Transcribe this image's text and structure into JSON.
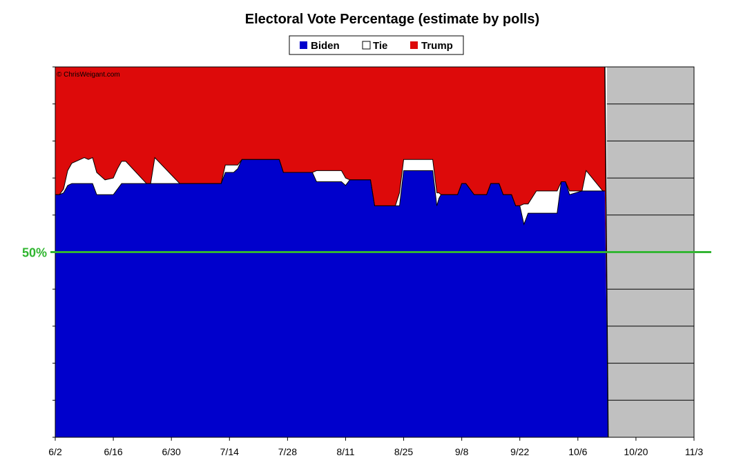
{
  "chart_data": {
    "type": "area",
    "title": "Electoral Vote Percentage (estimate by polls)",
    "credit": "© ChrisWeigant.com",
    "xlabel": "",
    "ylabel": "",
    "ylim": [
      0,
      100
    ],
    "x_ticks": [
      "6/2",
      "6/16",
      "6/30",
      "7/14",
      "7/28",
      "8/11",
      "8/25",
      "9/8",
      "9/22",
      "10/6",
      "10/20",
      "11/3"
    ],
    "x_tick_days": [
      0,
      14,
      28,
      42,
      56,
      70,
      84,
      98,
      112,
      126,
      140,
      154
    ],
    "y_grid_step": 10,
    "grid": true,
    "legend": "top-center",
    "reference_line": {
      "label": "50%",
      "value": 50,
      "color": "#33b533"
    },
    "future_region": {
      "from_day": 133,
      "to_day": 154,
      "color": "#c0c0c0"
    },
    "colors": {
      "Biden": "#0000cc",
      "Tie": "#ffffff",
      "Trump": "#dd0a0a"
    },
    "x": [
      0,
      1,
      2,
      3,
      4,
      7,
      8,
      9,
      10,
      12,
      14,
      15,
      16,
      17,
      22,
      23,
      24,
      30,
      31,
      40,
      41,
      43,
      44,
      45,
      46,
      54,
      55,
      62,
      63,
      69,
      70,
      71,
      76,
      77,
      82,
      83,
      84,
      91,
      92,
      92.5,
      93,
      95,
      97,
      98,
      99,
      101,
      104,
      105,
      107,
      108,
      110,
      111,
      112,
      113,
      114,
      116,
      117,
      121,
      122,
      123,
      124,
      127,
      128,
      132,
      132.5
    ],
    "series": [
      {
        "name": "Biden",
        "values": [
          65.5,
          65.5,
          66,
          68,
          68.5,
          68.5,
          68.5,
          68.5,
          65.5,
          65.5,
          65.5,
          67,
          68.5,
          68.5,
          68.5,
          68.5,
          68.5,
          68.5,
          68.5,
          68.5,
          71.5,
          71.5,
          72.5,
          75,
          75,
          75,
          71.5,
          71.5,
          69,
          69,
          68,
          69.5,
          69.5,
          62.5,
          62.5,
          62.5,
          72,
          72,
          62.5,
          64.5,
          65.5,
          65.5,
          65.5,
          68.5,
          68.5,
          65.5,
          65.5,
          68.5,
          68.5,
          65.5,
          65.5,
          62.5,
          62.5,
          57.5,
          60.5,
          60.5,
          60.5,
          60.5,
          69,
          69,
          65.5,
          66.5,
          66.5,
          66.5,
          66.5
        ]
      },
      {
        "name": "Tie",
        "values": [
          0,
          0,
          1,
          4,
          5.5,
          7,
          6.5,
          7,
          6,
          4,
          4.5,
          5.5,
          6,
          6,
          0,
          0,
          7,
          0,
          0,
          0,
          2,
          2,
          1,
          0,
          0,
          0,
          0,
          0,
          3,
          3,
          2,
          0,
          0,
          0,
          0,
          3.5,
          3,
          3,
          3.5,
          1.5,
          0,
          0,
          0,
          0,
          0,
          0,
          0,
          0,
          0,
          0,
          0,
          0,
          0,
          5.5,
          2.5,
          6,
          6,
          6,
          0,
          0,
          1,
          0,
          5.5,
          0,
          0
        ]
      },
      {
        "name": "Trump",
        "values": [
          34.5,
          34.5,
          33,
          28,
          26,
          24.5,
          25,
          24.5,
          28.5,
          30.5,
          30,
          27.5,
          25.5,
          25.5,
          31.5,
          31.5,
          24.5,
          31.5,
          31.5,
          31.5,
          26.5,
          26.5,
          26.5,
          25,
          25,
          25,
          28.5,
          28.5,
          28,
          28,
          30,
          30.5,
          30.5,
          37.5,
          37.5,
          34,
          25,
          25,
          34,
          34,
          34.5,
          34.5,
          34.5,
          31.5,
          31.5,
          34.5,
          34.5,
          31.5,
          31.5,
          34.5,
          34.5,
          37.5,
          37.5,
          37,
          37,
          33.5,
          33.5,
          33.5,
          31,
          31,
          33.5,
          33.5,
          28,
          33.5,
          33.5
        ]
      }
    ]
  }
}
